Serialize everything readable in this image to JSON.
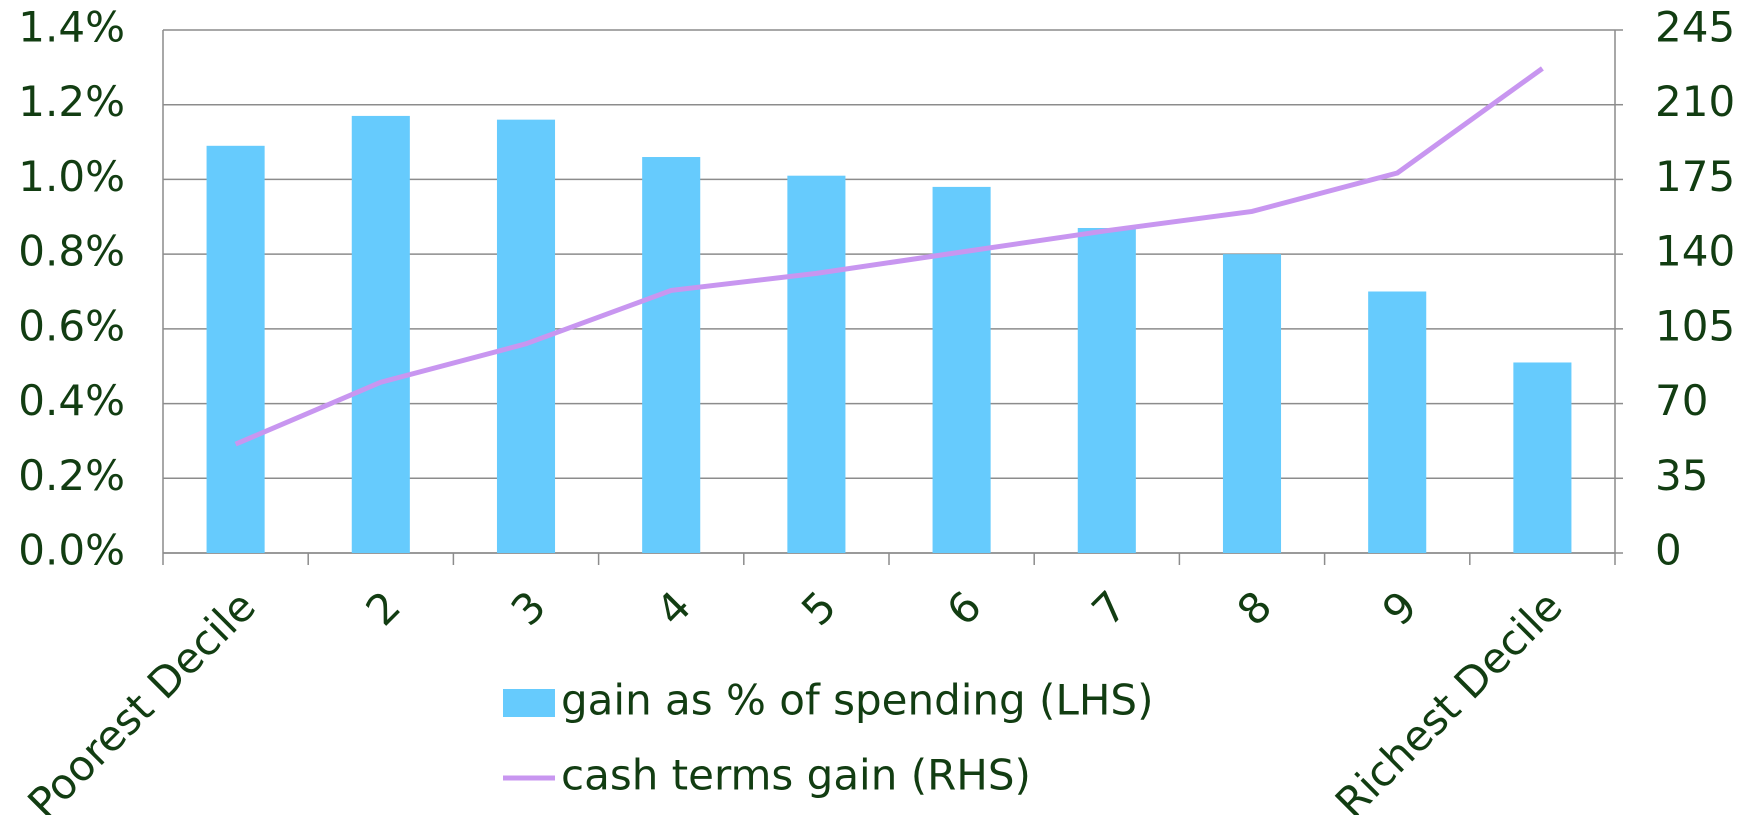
{
  "chart_data": {
    "type": "bar-line",
    "categories": [
      "Poorest Decile",
      "2",
      "3",
      "4",
      "5",
      "6",
      "7",
      "8",
      "9",
      "Richest Decile"
    ],
    "series": [
      {
        "name": "gain as % of spending (LHS)",
        "type": "bar",
        "color": "#66cbfd",
        "values": [
          1.09,
          1.17,
          1.16,
          1.06,
          1.01,
          0.98,
          0.87,
          0.8,
          0.7,
          0.51
        ]
      },
      {
        "name": "cash terms gain (RHS)",
        "type": "line",
        "axis": "y2",
        "color": "#c896f0",
        "values": [
          51,
          80,
          98,
          123,
          131,
          141,
          151,
          160,
          178,
          227
        ]
      }
    ],
    "ylim": [
      0,
      1.4
    ],
    "yticks": [
      {
        "value": 0,
        "label": "0.0%"
      },
      {
        "value": 0.2,
        "label": "0.2%"
      },
      {
        "value": 0.4,
        "label": "0.4%"
      },
      {
        "value": 0.6,
        "label": "0.6%"
      },
      {
        "value": 0.8,
        "label": "0.8%"
      },
      {
        "value": 1.0,
        "label": "1.0%"
      },
      {
        "value": 1.2,
        "label": "1.2%"
      },
      {
        "value": 1.4,
        "label": "1.4%"
      }
    ],
    "y2lim": [
      0,
      245
    ],
    "y2ticks": [
      0,
      35,
      70,
      105,
      140,
      175,
      210,
      245
    ],
    "grid": true,
    "legend": "bottom"
  }
}
